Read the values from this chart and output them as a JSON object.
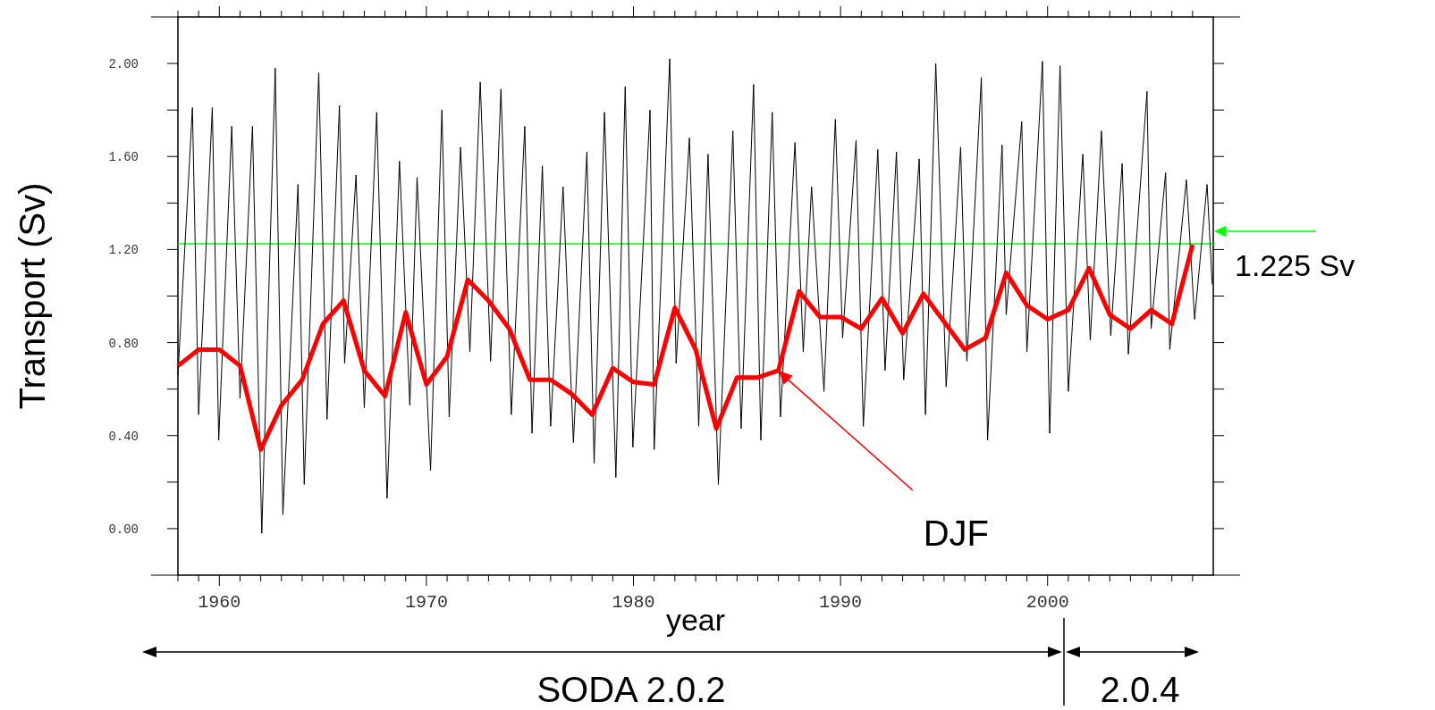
{
  "chart_data": {
    "type": "line",
    "xlabel": "year",
    "ylabel": "Transport (Sv)",
    "xlim": [
      1958,
      2008
    ],
    "ylim": [
      -0.2,
      2.2
    ],
    "xticks": [
      {
        "value": 1958,
        "label": null
      },
      {
        "value": 1959,
        "label": null
      },
      1960,
      {
        "value": 1961,
        "label": null
      },
      {
        "value": 1962,
        "label": null
      },
      {
        "value": 1963,
        "label": null
      },
      {
        "value": 1964,
        "label": null
      },
      {
        "value": 1965,
        "label": null
      },
      {
        "value": 1966,
        "label": null
      },
      {
        "value": 1967,
        "label": null
      },
      {
        "value": 1968,
        "label": null
      },
      {
        "value": 1969,
        "label": null
      },
      1970,
      {
        "value": 1971,
        "label": null
      },
      {
        "value": 1972,
        "label": null
      },
      {
        "value": 1973,
        "label": null
      },
      {
        "value": 1974,
        "label": null
      },
      {
        "value": 1975,
        "label": null
      },
      {
        "value": 1976,
        "label": null
      },
      {
        "value": 1977,
        "label": null
      },
      {
        "value": 1978,
        "label": null
      },
      {
        "value": 1979,
        "label": null
      },
      1980,
      {
        "value": 1981,
        "label": null
      },
      {
        "value": 1982,
        "label": null
      },
      {
        "value": 1983,
        "label": null
      },
      {
        "value": 1984,
        "label": null
      },
      {
        "value": 1985,
        "label": null
      },
      {
        "value": 1986,
        "label": null
      },
      {
        "value": 1987,
        "label": null
      },
      {
        "value": 1988,
        "label": null
      },
      {
        "value": 1989,
        "label": null
      },
      1990,
      {
        "value": 1991,
        "label": null
      },
      {
        "value": 1992,
        "label": null
      },
      {
        "value": 1993,
        "label": null
      },
      {
        "value": 1994,
        "label": null
      },
      {
        "value": 1995,
        "label": null
      },
      {
        "value": 1996,
        "label": null
      },
      {
        "value": 1997,
        "label": null
      },
      {
        "value": 1998,
        "label": null
      },
      {
        "value": 1999,
        "label": null
      },
      2000,
      {
        "value": 2001,
        "label": null
      },
      {
        "value": 2002,
        "label": null
      },
      {
        "value": 2003,
        "label": null
      },
      {
        "value": 2004,
        "label": null
      },
      {
        "value": 2005,
        "label": null
      },
      {
        "value": 2006,
        "label": null
      },
      {
        "value": 2007,
        "label": null
      }
    ],
    "yticks": [
      {
        "value": 0,
        "label": "0.00"
      },
      {
        "value": 0.2,
        "label": null
      },
      {
        "value": 0.4,
        "label": "0.40"
      },
      {
        "value": 0.6,
        "label": null
      },
      {
        "value": 0.8,
        "label": "0.80"
      },
      {
        "value": 1.0,
        "label": null
      },
      {
        "value": 1.2,
        "label": "1.20"
      },
      {
        "value": 1.4,
        "label": null
      },
      {
        "value": 1.6,
        "label": "1.60"
      },
      {
        "value": 1.8,
        "label": null
      },
      {
        "value": 2.0,
        "label": "2.00"
      }
    ],
    "grid": false,
    "marker": "none",
    "line_style": "solid",
    "ref_lines": [
      {
        "axis": "y",
        "value": 1.225,
        "label": "1.225 Sv",
        "color": "#00ff00"
      }
    ],
    "annotations": [
      {
        "text": "DJF",
        "x": 1987,
        "y": 0.68
      },
      "SODA 2.0.2",
      "2.0.4"
    ],
    "series": [
      {
        "color": "#000000",
        "x": [
          1958.0,
          1958.7,
          1959.0,
          1959.66,
          1959.97,
          1960.6,
          1961.0,
          1961.6,
          1962.05,
          1962.7,
          1963.07,
          1963.8,
          1964.1,
          1964.8,
          1965.2,
          1965.8,
          1966.05,
          1966.6,
          1967.0,
          1967.6,
          1968.1,
          1968.7,
          1969.2,
          1969.55,
          1970.2,
          1970.75,
          1971.1,
          1971.65,
          1972.1,
          1972.6,
          1973.1,
          1973.6,
          1974.1,
          1974.75,
          1975.1,
          1975.6,
          1976.0,
          1976.6,
          1977.1,
          1977.75,
          1978.1,
          1978.6,
          1979.15,
          1979.6,
          1979.97,
          1980.8,
          1981.0,
          1981.75,
          1982.06,
          1982.7,
          1983.15,
          1983.6,
          1984.1,
          1984.8,
          1985.2,
          1985.8,
          1986.15,
          1986.7,
          1987.1,
          1987.8,
          1988.2,
          1988.6,
          1989.2,
          1989.75,
          1990.1,
          1990.75,
          1991.1,
          1991.8,
          1992.15,
          1992.7,
          1993.05,
          1993.8,
          1994.1,
          1994.6,
          1995.1,
          1995.8,
          1996.1,
          1996.8,
          1997.1,
          1997.8,
          1998.0,
          1998.75,
          1999.0,
          1999.75,
          2000.1,
          2000.6,
          2001.0,
          2001.7,
          2002.06,
          2002.6,
          2003.05,
          2003.6,
          2003.9,
          2004.8,
          2005.0,
          2005.7,
          2005.9,
          2006.7,
          2007.1,
          2007.7,
          2007.95
        ],
        "values": [
          0.66,
          1.81,
          0.49,
          1.81,
          0.38,
          1.73,
          0.56,
          1.73,
          -0.02,
          1.98,
          0.06,
          1.48,
          0.19,
          1.96,
          0.47,
          1.82,
          0.71,
          1.52,
          0.52,
          1.79,
          0.13,
          1.58,
          0.53,
          1.51,
          0.25,
          1.8,
          0.48,
          1.64,
          0.76,
          1.92,
          0.72,
          1.89,
          0.49,
          1.73,
          0.41,
          1.56,
          0.44,
          1.47,
          0.37,
          1.62,
          0.28,
          1.79,
          0.22,
          1.9,
          0.35,
          1.8,
          0.34,
          2.02,
          0.71,
          1.68,
          0.44,
          1.61,
          0.19,
          1.71,
          0.43,
          1.91,
          0.38,
          1.79,
          0.48,
          1.66,
          0.76,
          1.47,
          0.59,
          1.76,
          0.82,
          1.67,
          0.44,
          1.63,
          0.68,
          1.62,
          0.64,
          1.59,
          0.49,
          2.0,
          0.61,
          1.64,
          0.72,
          1.94,
          0.38,
          1.65,
          0.92,
          1.75,
          0.76,
          2.01,
          0.41,
          1.99,
          0.59,
          1.61,
          0.81,
          1.71,
          0.83,
          1.57,
          0.75,
          1.88,
          0.86,
          1.53,
          0.77,
          1.5,
          0.9,
          1.48,
          1.05
        ]
      },
      {
        "color": "#ff0000",
        "x": [
          1958,
          1959,
          1960,
          1961,
          1962,
          1963,
          1964,
          1965,
          1966,
          1967,
          1968,
          1969,
          1970,
          1971,
          1972,
          1973,
          1974,
          1975,
          1976,
          1977,
          1978,
          1979,
          1980,
          1981,
          1982,
          1983,
          1984,
          1985,
          1986,
          1987,
          1988,
          1989,
          1990,
          1991,
          1992,
          1993,
          1994,
          1995,
          1996,
          1997,
          1998,
          1999,
          2000,
          2001,
          2002,
          2003,
          2004,
          2005,
          2006,
          2007
        ],
        "values": [
          0.7,
          0.77,
          0.77,
          0.7,
          0.34,
          0.53,
          0.64,
          0.88,
          0.98,
          0.68,
          0.57,
          0.93,
          0.62,
          0.74,
          1.07,
          0.98,
          0.86,
          0.64,
          0.64,
          0.58,
          0.49,
          0.69,
          0.63,
          0.62,
          0.95,
          0.77,
          0.43,
          0.65,
          0.65,
          0.68,
          1.02,
          0.91,
          0.91,
          0.86,
          0.99,
          0.84,
          1.01,
          0.89,
          0.77,
          0.82,
          1.1,
          0.96,
          0.9,
          0.94,
          1.12,
          0.92,
          0.86,
          0.94,
          0.88,
          1.22
        ]
      }
    ]
  }
}
